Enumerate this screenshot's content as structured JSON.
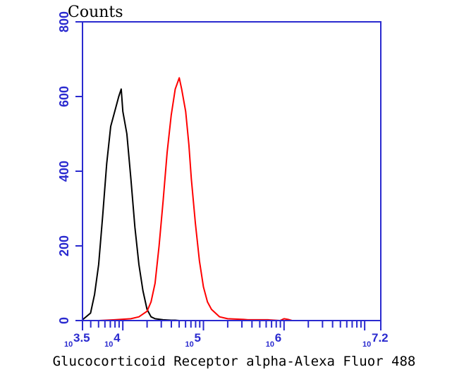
{
  "chart_data": {
    "type": "line",
    "ylabel": "Counts",
    "xlabel": "Glucocorticoid Receptor alpha-Alexa Fluor 488",
    "x_scale": "log",
    "xlim_log10": [
      3.5,
      7.2
    ],
    "ylim": [
      0,
      800
    ],
    "y_ticks": [
      0,
      200,
      400,
      600,
      800
    ],
    "x_tick_labels": [
      {
        "base": "10",
        "exp": "3.5",
        "log10": 3.5
      },
      {
        "base": "10",
        "exp": "4",
        "log10": 4
      },
      {
        "base": "10",
        "exp": "5",
        "log10": 5
      },
      {
        "base": "10",
        "exp": "6",
        "log10": 6
      },
      {
        "base": "10",
        "exp": "7.2",
        "log10": 7.2
      }
    ],
    "series": [
      {
        "color": "#000000",
        "log10_x": [
          3.5,
          3.6,
          3.65,
          3.7,
          3.75,
          3.8,
          3.85,
          3.9,
          3.95,
          3.98,
          4.0,
          4.05,
          4.1,
          4.15,
          4.2,
          4.25,
          4.3,
          4.35,
          4.4,
          4.5,
          4.6,
          4.65,
          4.7
        ],
        "values": [
          2,
          20,
          70,
          150,
          280,
          420,
          520,
          560,
          600,
          620,
          560,
          500,
          380,
          250,
          150,
          80,
          30,
          10,
          5,
          2,
          1,
          1,
          0
        ]
      },
      {
        "color": "#ff0000",
        "log10_x": [
          3.7,
          3.9,
          4.1,
          4.2,
          4.3,
          4.35,
          4.4,
          4.45,
          4.5,
          4.55,
          4.6,
          4.65,
          4.7,
          4.73,
          4.78,
          4.82,
          4.85,
          4.9,
          4.95,
          5.0,
          5.05,
          5.1,
          5.15,
          5.2,
          5.3,
          5.4,
          5.5,
          5.55,
          5.8,
          5.95,
          6.0,
          6.05,
          6.1
        ],
        "values": [
          0,
          2,
          5,
          10,
          25,
          50,
          100,
          200,
          320,
          450,
          550,
          620,
          650,
          620,
          560,
          470,
          380,
          260,
          160,
          90,
          50,
          30,
          20,
          10,
          5,
          4,
          3,
          2,
          2,
          0,
          5,
          3,
          0
        ]
      }
    ]
  }
}
